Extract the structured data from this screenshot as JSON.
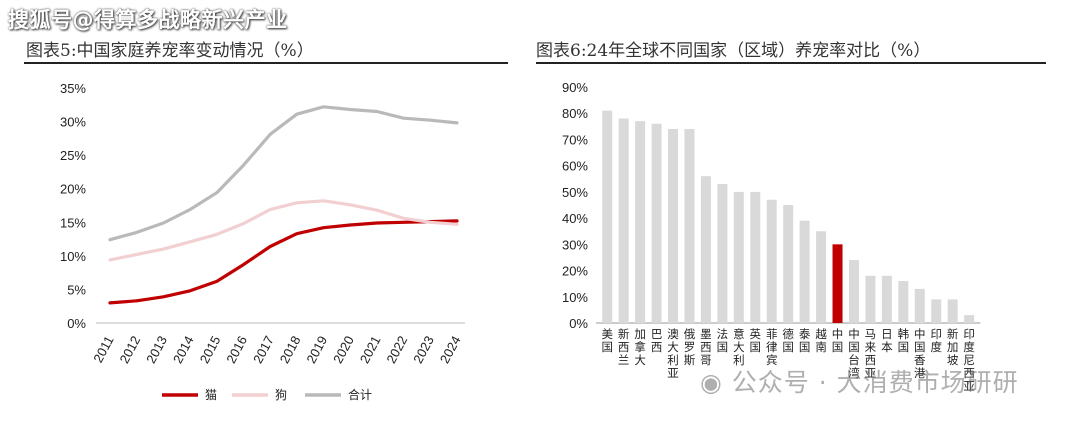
{
  "watermark_top": "搜狐号@得算多战略新兴产业",
  "watermark_bottom": "公众号 · 大消费市场研研",
  "chart_data": [
    {
      "type": "line",
      "title": "图表5:中国家庭养宠率变动情况（%）",
      "x": [
        "2011",
        "2012",
        "2013",
        "2014",
        "2015",
        "2016",
        "2017",
        "2018",
        "2019",
        "2020",
        "2021",
        "2022",
        "2023",
        "2024"
      ],
      "series": [
        {
          "name": "猫",
          "color": "#c00000",
          "values": [
            3.0,
            3.3,
            3.9,
            4.8,
            6.2,
            8.7,
            11.4,
            13.3,
            14.2,
            14.6,
            14.9,
            15.0,
            15.1,
            15.2
          ]
        },
        {
          "name": "狗",
          "color": "#f2cfd1",
          "values": [
            9.4,
            10.2,
            11.0,
            12.1,
            13.2,
            14.8,
            16.9,
            17.9,
            18.2,
            17.6,
            16.8,
            15.6,
            15.0,
            14.7
          ]
        },
        {
          "name": "合计",
          "color": "#b9b9b9",
          "values": [
            12.4,
            13.5,
            14.9,
            16.9,
            19.4,
            23.5,
            28.1,
            31.1,
            32.2,
            31.8,
            31.5,
            30.5,
            30.2,
            29.8
          ]
        }
      ],
      "ylim": [
        0,
        35
      ],
      "yticks": [
        "0%",
        "5%",
        "10%",
        "15%",
        "20%",
        "25%",
        "30%",
        "35%"
      ],
      "legend": "bottom"
    },
    {
      "type": "bar",
      "title": "图表6:24年全球不同国家（区域）养宠率对比（%）",
      "categories": [
        "美国",
        "新西兰",
        "加拿大",
        "巴西",
        "澳大利亚",
        "俄罗斯",
        "墨西哥",
        "法国",
        "意大利",
        "英国",
        "菲律宾",
        "德国",
        "泰国",
        "越南",
        "中国",
        "中国台湾",
        "马来西亚",
        "日本",
        "韩国",
        "中国香港",
        "印度",
        "新加坡",
        "印度尼西亚"
      ],
      "values": [
        81,
        78,
        77,
        76,
        74,
        74,
        56,
        53,
        50,
        50,
        47,
        45,
        39,
        35,
        30,
        24,
        18,
        18,
        16,
        13,
        9,
        9,
        3
      ],
      "bar_color": "#d9d9d9",
      "highlight_color": "#c00000",
      "highlight_index": 14,
      "ylim": [
        0,
        90
      ],
      "yticks": [
        "0%",
        "10%",
        "20%",
        "30%",
        "40%",
        "50%",
        "60%",
        "70%",
        "80%",
        "90%"
      ]
    }
  ]
}
